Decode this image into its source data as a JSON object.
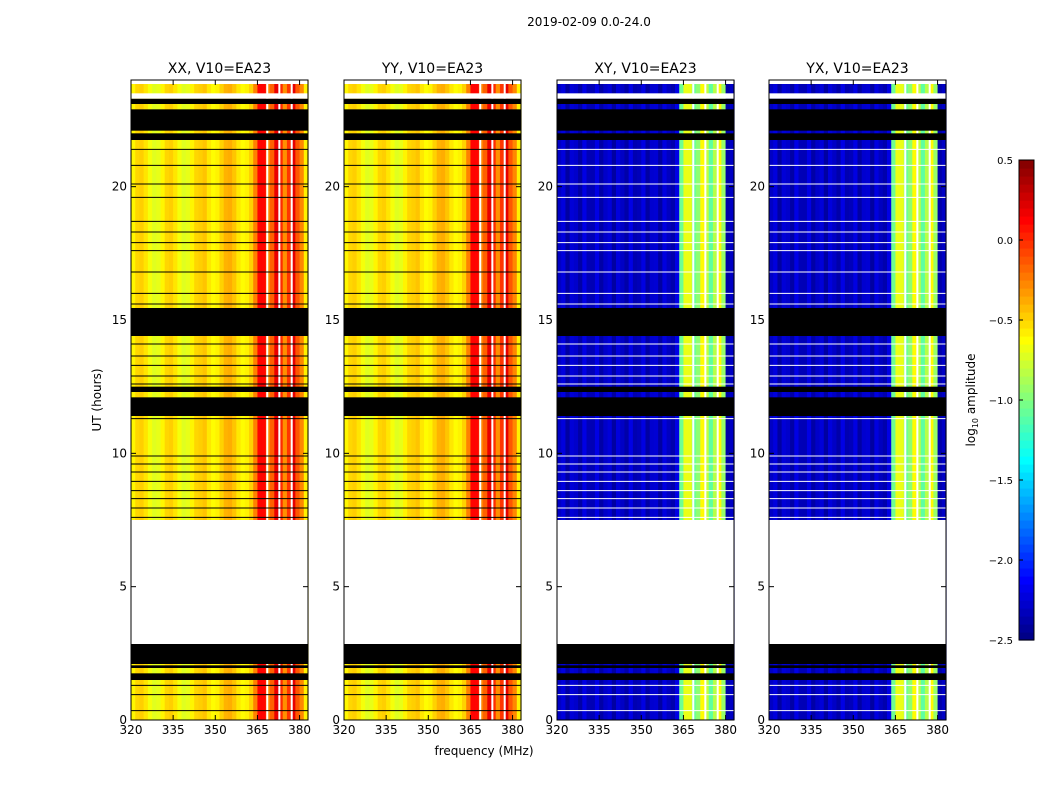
{
  "figure": {
    "suptitle": "2019-02-09 0.0-24.0",
    "colorbar_label_prefix": "log",
    "colorbar_label_sub": "10",
    "colorbar_label_suffix": " amplitude"
  },
  "chart_data": {
    "type": "heatmap",
    "title": "2019-02-09 0.0-24.0",
    "xlabel": "frequency (MHz)",
    "ylabel": "UT (hours)",
    "xlim": [
      320,
      383
    ],
    "ylim": [
      0,
      24
    ],
    "xticks": [
      320,
      335,
      350,
      365,
      380
    ],
    "xtick_labels": [
      "320",
      "335",
      "350",
      "365",
      "380"
    ],
    "yticks": [
      0,
      5,
      10,
      15,
      20
    ],
    "ytick_labels": [
      "0",
      "5",
      "10",
      "15",
      "20"
    ],
    "colorbar": {
      "colormap": "jet",
      "range": [
        -2.5,
        0.5
      ],
      "ticks": [
        0.5,
        0.0,
        -0.5,
        -1.0,
        -1.5,
        -2.0,
        -2.5
      ],
      "tick_labels": [
        "0.5",
        "0.0",
        "−0.5",
        "−1.0",
        "−1.5",
        "−2.0",
        "−2.5"
      ],
      "label": "log10 amplitude"
    },
    "panels": [
      {
        "title": "XX, V10=EA23",
        "kind": "parallel",
        "base_level": -0.6,
        "band_level": -0.05,
        "band_range_mhz": [
          364,
          381
        ],
        "note": "parallel-hand; amplitudes roughly -0.7 to 0.3, strongest 364-381 MHz"
      },
      {
        "title": "YY, V10=EA23",
        "kind": "parallel",
        "base_level": -0.6,
        "band_level": -0.05,
        "band_range_mhz": [
          364,
          381
        ],
        "note": "parallel-hand; amplitudes roughly -0.7 to 0.3, strongest 364-381 MHz"
      },
      {
        "title": "XY, V10=EA23",
        "kind": "cross",
        "base_level": -2.3,
        "band_level": -0.85,
        "band_range_mhz": [
          364,
          380
        ],
        "note": "cross-hand; background near -2.3, band 364-380 MHz near -1.0 to -0.1"
      },
      {
        "title": "YX, V10=EA23",
        "kind": "cross",
        "base_level": -2.3,
        "band_level": -0.85,
        "band_range_mhz": [
          364,
          380
        ],
        "note": "cross-hand; background near -2.3, band 364-380 MHz near -1.0 to -0.1"
      }
    ],
    "flagged_intervals_ut": [
      [
        1.5,
        1.75
      ],
      [
        1.95,
        2.05
      ],
      [
        2.1,
        2.85
      ],
      [
        11.4,
        12.1
      ],
      [
        12.3,
        12.5
      ],
      [
        14.4,
        15.45
      ],
      [
        21.75,
        22.0
      ],
      [
        22.1,
        22.9
      ],
      [
        23.1,
        23.3
      ]
    ],
    "missing_intervals_ut": [
      [
        2.85,
        7.5
      ],
      [
        23.3,
        23.5
      ],
      [
        23.85,
        24.0
      ]
    ],
    "dead_channels_mhz": [
      368.5,
      372.8,
      377.2
    ]
  }
}
